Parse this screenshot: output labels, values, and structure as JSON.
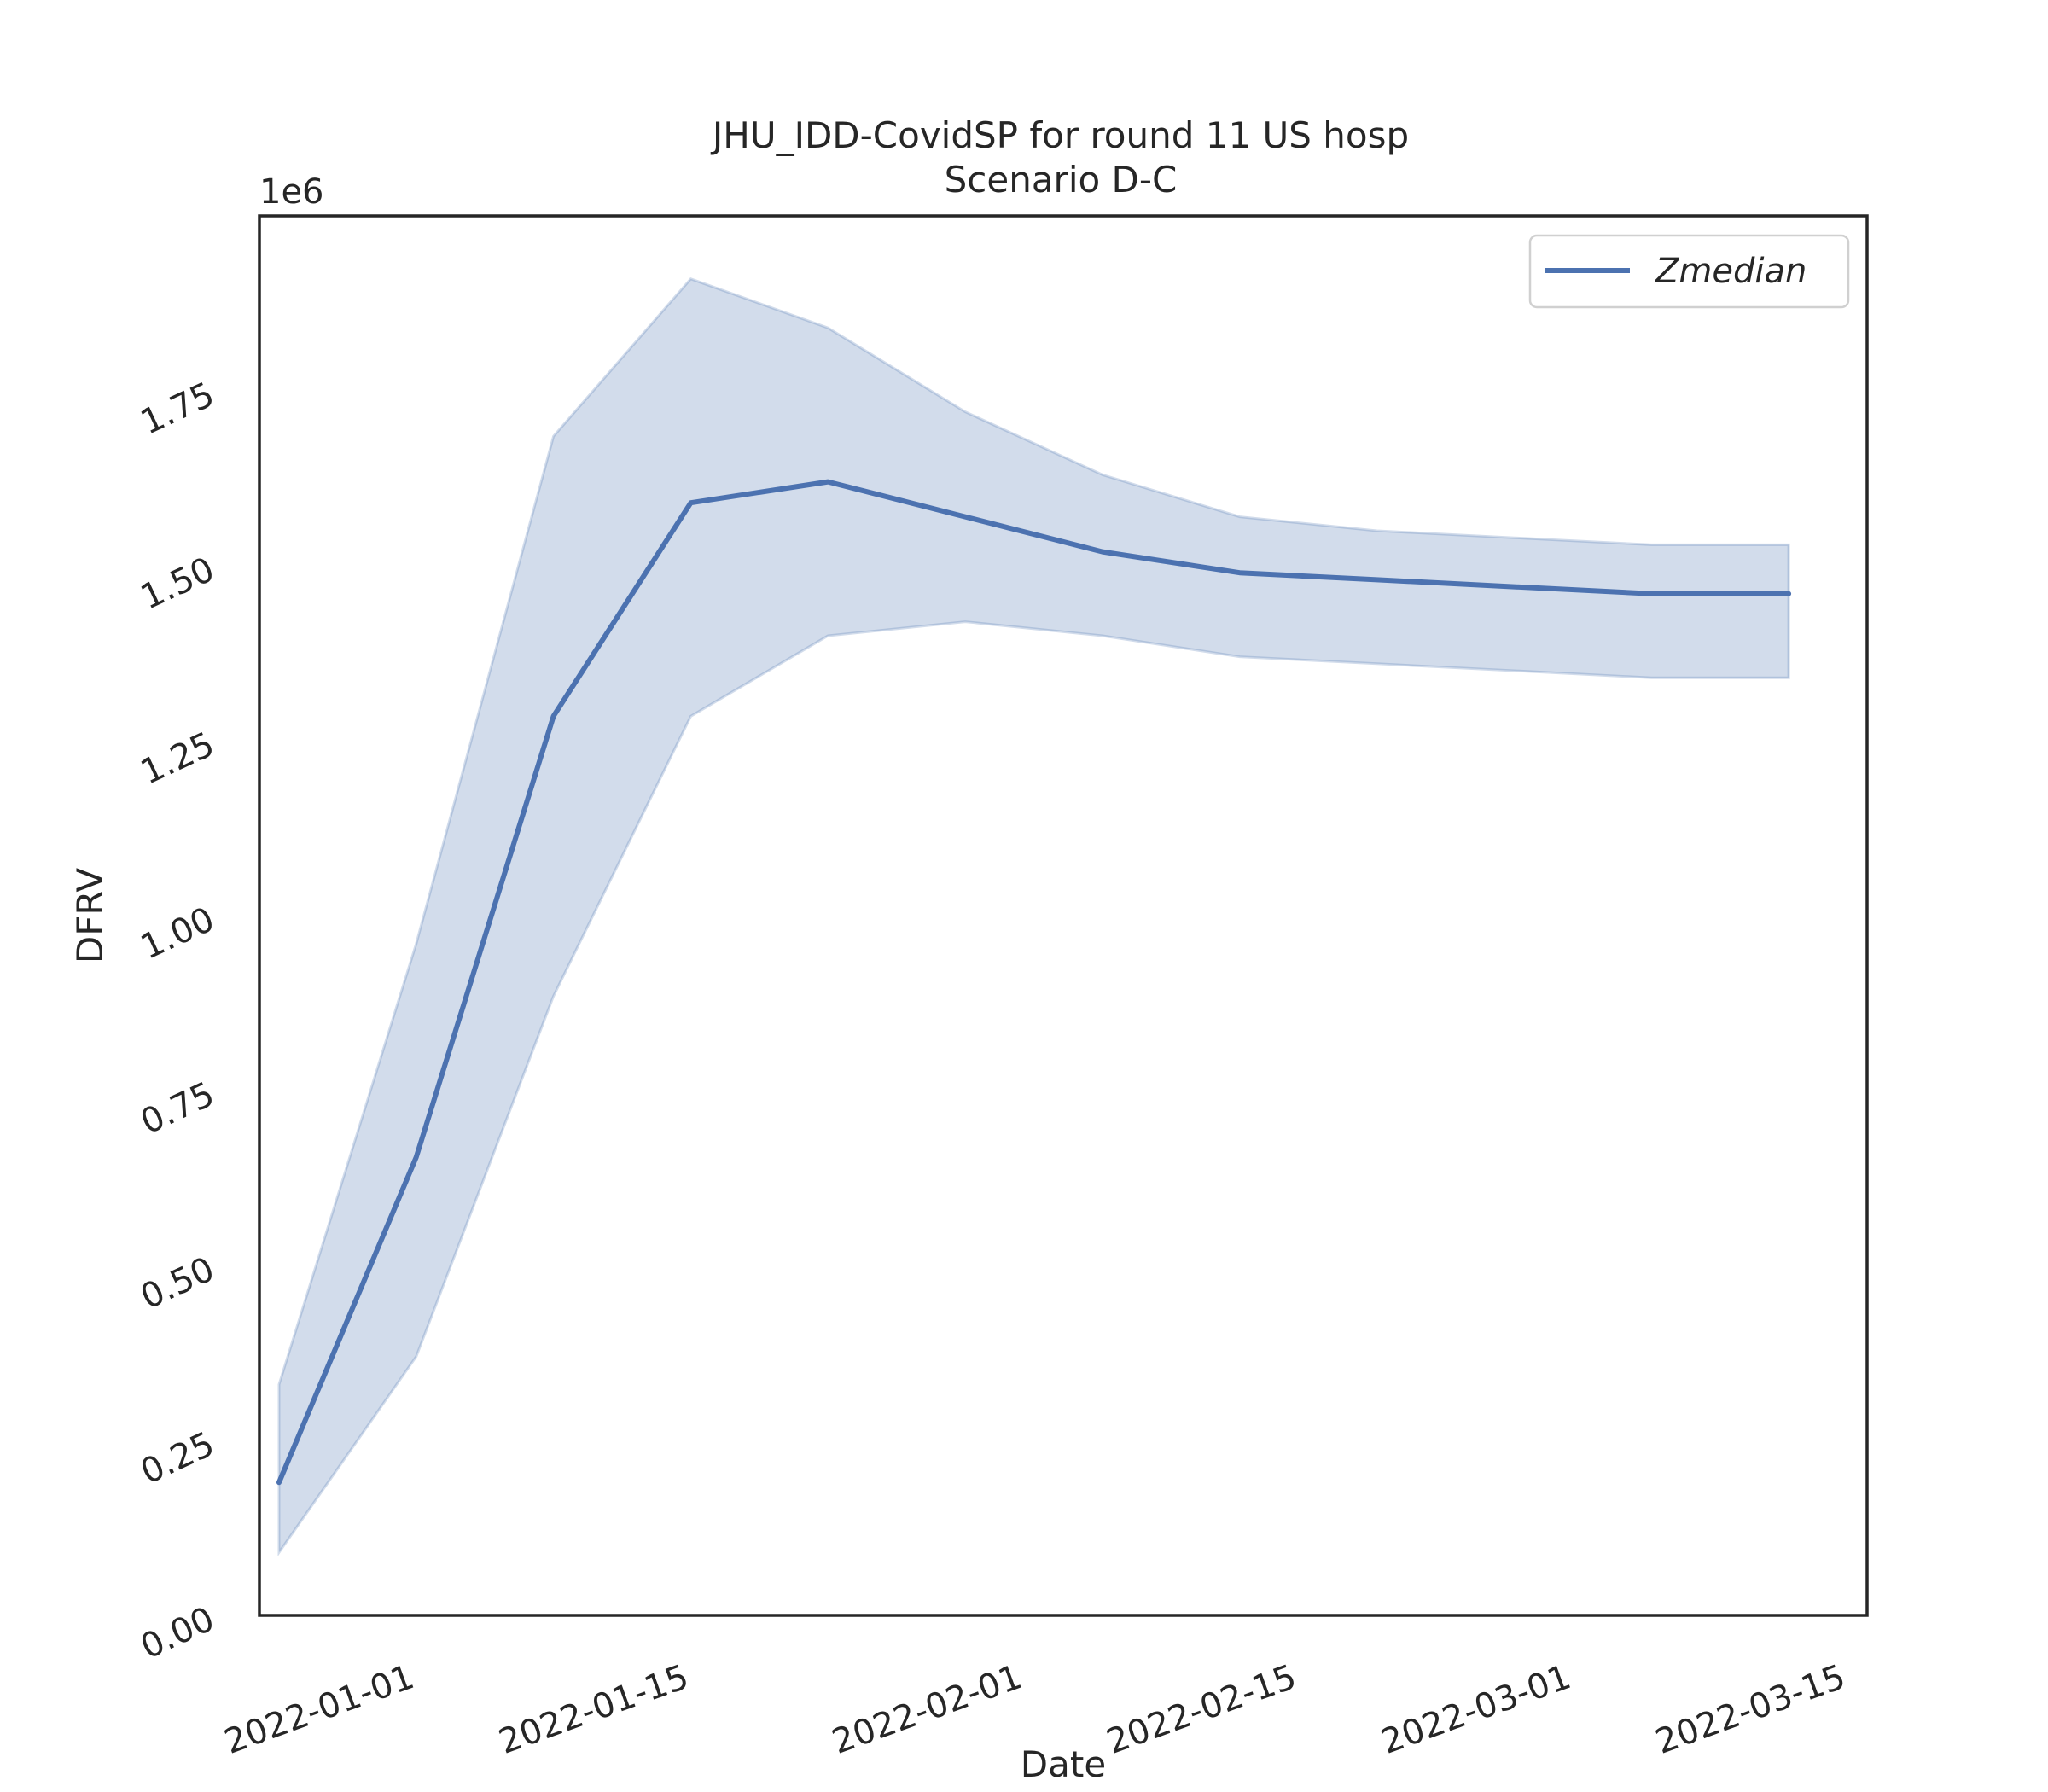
{
  "chart_data": {
    "type": "line",
    "title": "JHU_IDD-CovidSP for round 11 US hosp",
    "subtitle": "Scenario D-C",
    "xlabel": "Date",
    "ylabel": "DFRV",
    "y_offset_label": "1e6",
    "y_scale_factor": 1000000,
    "ylim": [
      0,
      2000000
    ],
    "xlim": [
      "2021-12-24",
      "2022-03-16"
    ],
    "x_ticks": [
      "2022-01-01",
      "2022-01-15",
      "2022-02-01",
      "2022-02-15",
      "2022-03-01",
      "2022-03-15"
    ],
    "y_ticks": [
      0,
      250000,
      500000,
      750000,
      1000000,
      1250000,
      1500000,
      1750000
    ],
    "y_tick_labels": [
      "0.00",
      "0.25",
      "0.50",
      "0.75",
      "1.00",
      "1.25",
      "1.50",
      "1.75"
    ],
    "grid": false,
    "legend": "top-right",
    "x": [
      "2021-12-25",
      "2022-01-01",
      "2022-01-08",
      "2022-01-15",
      "2022-01-22",
      "2022-01-29",
      "2022-02-05",
      "2022-02-12",
      "2022-02-19",
      "2022-02-26",
      "2022-03-05",
      "2022-03-12"
    ],
    "series": [
      {
        "name": "Zmedian",
        "color": "#4c72b0",
        "values": [
          190000,
          655000,
          1285000,
          1590000,
          1620000,
          1570000,
          1520000,
          1490000,
          1480000,
          1470000,
          1460000,
          1460000
        ]
      }
    ],
    "band": {
      "color": "#4c72b0",
      "lower": [
        90000,
        370000,
        885000,
        1285000,
        1400000,
        1420000,
        1400000,
        1370000,
        1360000,
        1350000,
        1340000,
        1340000
      ],
      "upper": [
        330000,
        960000,
        1685000,
        1910000,
        1840000,
        1720000,
        1630000,
        1570000,
        1550000,
        1540000,
        1530000,
        1530000
      ]
    }
  }
}
